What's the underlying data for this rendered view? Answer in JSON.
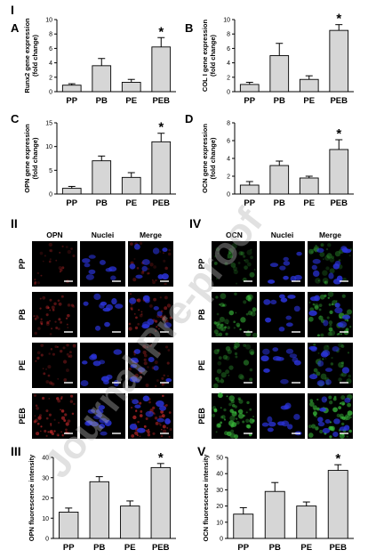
{
  "sections": {
    "I": "I",
    "II": "II",
    "III": "III",
    "IV": "IV",
    "V": "V"
  },
  "watermark": "Journal Pre-proof",
  "colors": {
    "bar_fill": "#d6d6d6",
    "opn_stain": "#c0282a",
    "ocn_stain": "#38b53a",
    "nuclei_stain": "#2a33d8",
    "background": "#ffffff"
  },
  "micrographs_opn": {
    "columns": [
      "OPN",
      "Nuclei",
      "Merge"
    ],
    "rows": [
      "PP",
      "PB",
      "PE",
      "PEB"
    ],
    "stain_intensity": [
      0.25,
      0.55,
      0.35,
      0.85
    ]
  },
  "micrographs_ocn": {
    "columns": [
      "OCN",
      "Nuclei",
      "Merge"
    ],
    "rows": [
      "PP",
      "PB",
      "PE",
      "PEB"
    ],
    "stain_intensity": [
      0.3,
      0.7,
      0.35,
      0.9
    ]
  },
  "chart_data": [
    {
      "panel": "A",
      "type": "bar",
      "categories": [
        "PP",
        "PB",
        "PE",
        "PEB"
      ],
      "values": [
        0.9,
        3.6,
        1.3,
        6.2
      ],
      "errors": [
        0.2,
        1.0,
        0.4,
        1.3
      ],
      "significant": [
        false,
        false,
        false,
        true
      ],
      "ylabel_lines": [
        "Runx2 gene expression",
        "(fold change)"
      ],
      "ylim": [
        0,
        10
      ],
      "yticks": [
        0,
        2,
        4,
        6,
        8,
        10
      ]
    },
    {
      "panel": "B",
      "type": "bar",
      "categories": [
        "PP",
        "PB",
        "PE",
        "PEB"
      ],
      "values": [
        1.0,
        5.0,
        1.7,
        8.5
      ],
      "errors": [
        0.3,
        1.7,
        0.5,
        0.8
      ],
      "significant": [
        false,
        false,
        false,
        true
      ],
      "ylabel_lines": [
        "COL I gene expression",
        "(fold change)"
      ],
      "ylim": [
        0,
        10
      ],
      "yticks": [
        0,
        2,
        4,
        6,
        8,
        10
      ]
    },
    {
      "panel": "C",
      "type": "bar",
      "categories": [
        "PP",
        "PB",
        "PE",
        "PEB"
      ],
      "values": [
        1.2,
        7.0,
        3.5,
        11.0
      ],
      "errors": [
        0.4,
        1.0,
        1.0,
        1.8
      ],
      "significant": [
        false,
        false,
        false,
        true
      ],
      "ylabel_lines": [
        "OPN gene expression",
        "(fold change)"
      ],
      "ylim": [
        0,
        15
      ],
      "yticks": [
        0,
        5,
        10,
        15
      ]
    },
    {
      "panel": "D",
      "type": "bar",
      "categories": [
        "PP",
        "PB",
        "PE",
        "PEB"
      ],
      "values": [
        1.0,
        3.2,
        1.8,
        5.0
      ],
      "errors": [
        0.4,
        0.5,
        0.2,
        1.1
      ],
      "significant": [
        false,
        false,
        false,
        true
      ],
      "ylabel_lines": [
        "OCN gene expression",
        "(fold change)"
      ],
      "ylim": [
        0,
        8
      ],
      "yticks": [
        0,
        2,
        4,
        6,
        8
      ]
    },
    {
      "panel": "III",
      "type": "bar",
      "categories": [
        "PP",
        "PB",
        "PE",
        "PEB"
      ],
      "values": [
        13,
        28,
        16,
        35
      ],
      "errors": [
        2,
        2.5,
        2.5,
        2
      ],
      "significant": [
        false,
        false,
        false,
        true
      ],
      "ylabel_lines": [
        "OPN fluorescence intensity"
      ],
      "ylim": [
        0,
        40
      ],
      "yticks": [
        0,
        10,
        20,
        30,
        40
      ]
    },
    {
      "panel": "V",
      "type": "bar",
      "categories": [
        "PP",
        "PB",
        "PE",
        "PEB"
      ],
      "values": [
        15,
        29,
        20,
        42
      ],
      "errors": [
        4,
        5.5,
        2.5,
        3.5
      ],
      "significant": [
        false,
        false,
        false,
        true
      ],
      "ylabel_lines": [
        "OCN fluorescence intensity"
      ],
      "ylim": [
        0,
        50
      ],
      "yticks": [
        0,
        10,
        20,
        30,
        40,
        50
      ]
    }
  ]
}
